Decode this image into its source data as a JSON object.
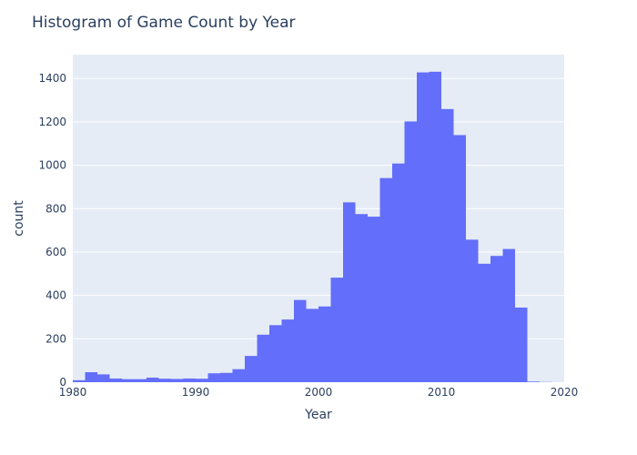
{
  "chart_data": {
    "type": "bar",
    "title": "Histogram of Game Count by Year",
    "xlabel": "Year",
    "ylabel": "count",
    "xlim": [
      1980,
      2020
    ],
    "ylim": [
      0,
      1510
    ],
    "xticks": [
      1980,
      1990,
      2000,
      2010,
      2020
    ],
    "yticks": [
      0,
      200,
      400,
      600,
      800,
      1000,
      1200,
      1400
    ],
    "grid": true,
    "legend": "none",
    "bin_width": 1,
    "x": [
      1980,
      1981,
      1982,
      1983,
      1984,
      1985,
      1986,
      1987,
      1988,
      1989,
      1990,
      1991,
      1992,
      1993,
      1994,
      1995,
      1996,
      1997,
      1998,
      1999,
      2000,
      2001,
      2002,
      2003,
      2004,
      2005,
      2006,
      2007,
      2008,
      2009,
      2010,
      2011,
      2012,
      2013,
      2014,
      2015,
      2016,
      2017,
      2018,
      2019
    ],
    "values": [
      9,
      46,
      36,
      17,
      14,
      14,
      21,
      16,
      15,
      17,
      16,
      41,
      43,
      60,
      121,
      219,
      263,
      289,
      379,
      338,
      349,
      482,
      829,
      775,
      763,
      941,
      1008,
      1202,
      1428,
      1431,
      1259,
      1139,
      657,
      546,
      582,
      614,
      344,
      3,
      1,
      0
    ],
    "colors": {
      "bar": "#636efa",
      "plot_bg": "#e5ecf6",
      "grid": "#ffffff",
      "text": "#2a3f5f"
    }
  }
}
